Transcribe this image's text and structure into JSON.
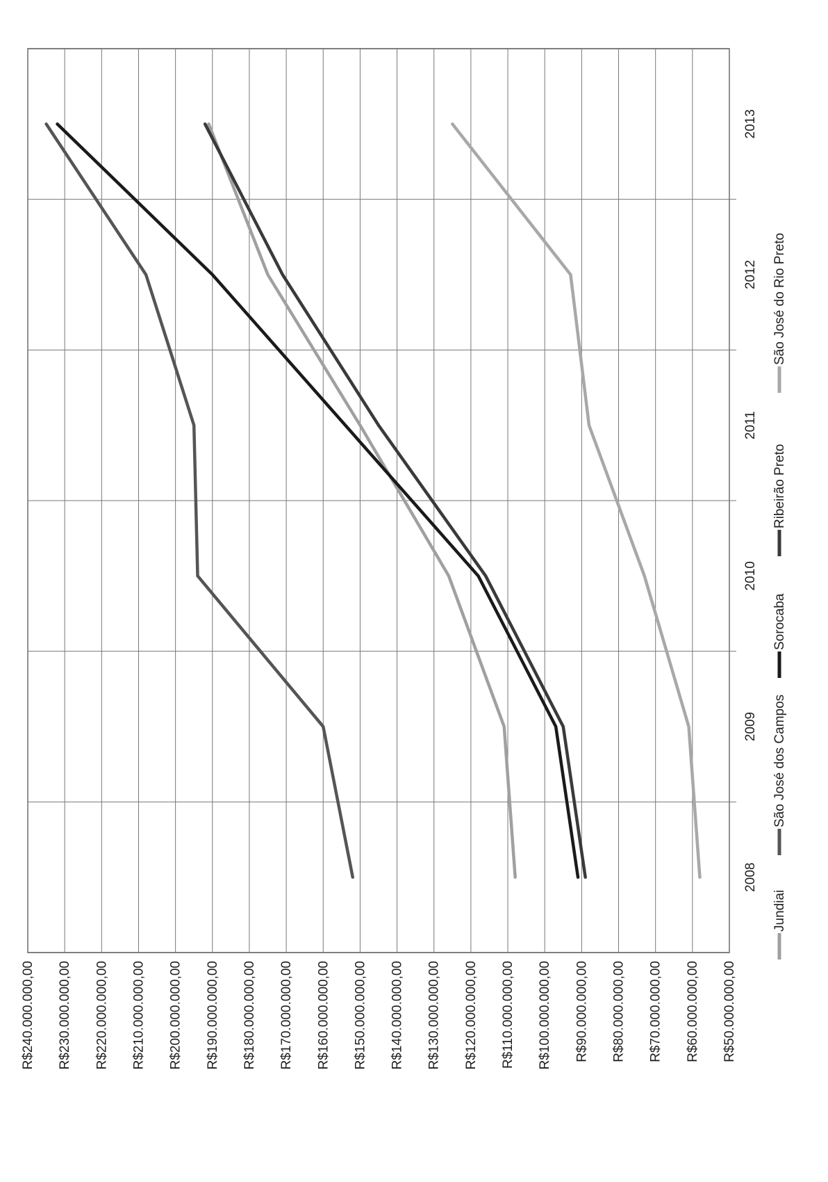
{
  "chart_data": {
    "type": "line",
    "title": "",
    "xlabel": "",
    "ylabel": "",
    "x": [
      "2008",
      "2009",
      "2010",
      "2011",
      "2012",
      "2013"
    ],
    "ylim": [
      50000000,
      240000000
    ],
    "y_ticks": [
      "R$50.000.000,00",
      "R$60.000.000,00",
      "R$70.000.000,00",
      "R$80.000.000,00",
      "R$90.000.000,00",
      "R$100.000.000,00",
      "R$110.000.000,00",
      "R$120.000.000,00",
      "R$130.000.000,00",
      "R$140.000.000,00",
      "R$150.000.000,00",
      "R$160.000.000,00",
      "R$170.000.000,00",
      "R$180.000.000,00",
      "R$190.000.000,00",
      "R$200.000.000,00",
      "R$210.000.000,00",
      "R$220.000.000,00",
      "R$230.000.000,00",
      "R$240.000.000,00"
    ],
    "grid": true,
    "legend_position": "bottom",
    "orientation": "rotated 90 degrees counter-clockwise",
    "series": [
      {
        "name": "Jundiai",
        "color": "#a0a0a0",
        "values": [
          108000000,
          111000000,
          126000000,
          150000000,
          175000000,
          191000000
        ]
      },
      {
        "name": "São José dos Campos",
        "color": "#555555",
        "values": [
          152000000,
          160000000,
          194000000,
          195000000,
          208000000,
          235000000
        ]
      },
      {
        "name": "Sorocaba",
        "color": "#1a1a1a",
        "values": [
          91000000,
          97000000,
          118000000,
          154000000,
          190000000,
          232000000
        ]
      },
      {
        "name": "Ribeirão Preto",
        "color": "#3a3a3a",
        "values": [
          89000000,
          95000000,
          116000000,
          145000000,
          171000000,
          192000000
        ]
      },
      {
        "name": "São José do Rio Preto",
        "color": "#a8a8a8",
        "values": [
          58000000,
          61000000,
          73000000,
          88000000,
          93000000,
          125000000
        ]
      }
    ]
  }
}
